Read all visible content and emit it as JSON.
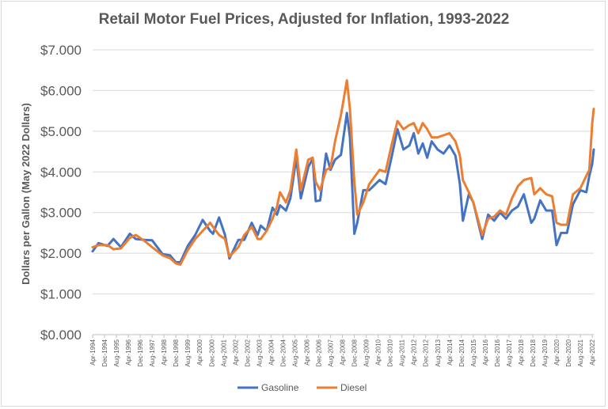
{
  "chart_data": {
    "type": "line",
    "title": "Retail Motor Fuel Prices, Adjusted for Inflation, 1993-2022",
    "xlabel": "",
    "ylabel": "Dollars per Gallon (May 2022 Dollars)",
    "ylim": [
      0,
      7
    ],
    "y_ticks": [
      "$0.000",
      "$1.000",
      "$2.000",
      "$3.000",
      "$4.000",
      "$5.000",
      "$6.000",
      "$7.000"
    ],
    "x_tick_labels": [
      "Apr-1994",
      "Dec-1994",
      "Aug-1995",
      "Apr-1996",
      "Dec-1996",
      "Aug-1997",
      "Apr-1998",
      "Dec-1998",
      "Aug-1999",
      "Apr-2000",
      "Dec-2000",
      "Aug-2001",
      "Apr-2002",
      "Dec-2002",
      "Aug-2003",
      "Apr-2004",
      "Dec-2004",
      "Aug-2005",
      "Apr-2006",
      "Dec-2006",
      "Aug-2007",
      "Apr-2008",
      "Dec-2008",
      "Aug-2009",
      "Apr-2010",
      "Dec-2010",
      "Aug-2011",
      "Apr-2012",
      "Dec-2012",
      "Aug-2013",
      "Apr-2014",
      "Dec-2014",
      "Aug-2015",
      "Apr-2016",
      "Dec-2016",
      "Aug-2017",
      "Apr-2018",
      "Dec-2018",
      "Aug-2019",
      "Apr-2020",
      "Dec-2020",
      "Aug-2021",
      "Apr-2022"
    ],
    "grid": true,
    "legend_position": "bottom",
    "x_range": [
      "1994-04",
      "2022-05"
    ],
    "series": [
      {
        "name": "Gasoline",
        "color": "#4472c4",
        "points": [
          [
            "1994-04",
            2.05
          ],
          [
            "1994-08",
            2.25
          ],
          [
            "1995-02",
            2.18
          ],
          [
            "1995-06",
            2.35
          ],
          [
            "1995-11",
            2.15
          ],
          [
            "1996-05",
            2.48
          ],
          [
            "1996-09",
            2.35
          ],
          [
            "1997-03",
            2.33
          ],
          [
            "1997-08",
            2.32
          ],
          [
            "1998-03",
            1.98
          ],
          [
            "1998-08",
            1.95
          ],
          [
            "1998-12",
            1.78
          ],
          [
            "1999-03",
            1.78
          ],
          [
            "1999-08",
            2.18
          ],
          [
            "2000-01",
            2.45
          ],
          [
            "2000-06",
            2.82
          ],
          [
            "2000-11",
            2.55
          ],
          [
            "2001-01",
            2.48
          ],
          [
            "2001-05",
            2.88
          ],
          [
            "2001-09",
            2.45
          ],
          [
            "2001-12",
            1.87
          ],
          [
            "2002-06",
            2.33
          ],
          [
            "2002-10",
            2.33
          ],
          [
            "2003-03",
            2.75
          ],
          [
            "2003-07",
            2.45
          ],
          [
            "2003-09",
            2.68
          ],
          [
            "2004-01",
            2.55
          ],
          [
            "2004-05",
            3.12
          ],
          [
            "2004-08",
            2.95
          ],
          [
            "2004-10",
            3.18
          ],
          [
            "2005-02",
            3.05
          ],
          [
            "2005-05",
            3.35
          ],
          [
            "2005-09",
            4.35
          ],
          [
            "2005-12",
            3.35
          ],
          [
            "2006-05",
            4.12
          ],
          [
            "2006-08",
            4.32
          ],
          [
            "2006-10",
            3.28
          ],
          [
            "2007-01",
            3.3
          ],
          [
            "2007-05",
            4.45
          ],
          [
            "2007-08",
            4.05
          ],
          [
            "2007-11",
            4.3
          ],
          [
            "2008-03",
            4.42
          ],
          [
            "2008-07",
            5.45
          ],
          [
            "2008-09",
            4.85
          ],
          [
            "2008-12",
            2.48
          ],
          [
            "2009-02",
            2.75
          ],
          [
            "2009-06",
            3.55
          ],
          [
            "2009-10",
            3.55
          ],
          [
            "2010-05",
            3.8
          ],
          [
            "2010-09",
            3.7
          ],
          [
            "2011-01",
            4.35
          ],
          [
            "2011-05",
            5.05
          ],
          [
            "2011-09",
            4.55
          ],
          [
            "2012-01",
            4.65
          ],
          [
            "2012-04",
            4.95
          ],
          [
            "2012-07",
            4.45
          ],
          [
            "2012-10",
            4.7
          ],
          [
            "2013-01",
            4.35
          ],
          [
            "2013-04",
            4.75
          ],
          [
            "2013-08",
            4.55
          ],
          [
            "2013-12",
            4.45
          ],
          [
            "2014-04",
            4.65
          ],
          [
            "2014-08",
            4.4
          ],
          [
            "2014-11",
            3.7
          ],
          [
            "2015-01",
            2.8
          ],
          [
            "2015-05",
            3.45
          ],
          [
            "2015-08",
            3.25
          ],
          [
            "2016-02",
            2.35
          ],
          [
            "2016-06",
            2.95
          ],
          [
            "2016-10",
            2.8
          ],
          [
            "2017-02",
            3.0
          ],
          [
            "2017-06",
            2.85
          ],
          [
            "2017-10",
            3.05
          ],
          [
            "2018-02",
            3.15
          ],
          [
            "2018-06",
            3.45
          ],
          [
            "2018-11",
            2.75
          ],
          [
            "2019-01",
            2.85
          ],
          [
            "2019-05",
            3.3
          ],
          [
            "2019-09",
            3.05
          ],
          [
            "2020-01",
            3.05
          ],
          [
            "2020-04",
            2.2
          ],
          [
            "2020-07",
            2.5
          ],
          [
            "2020-11",
            2.5
          ],
          [
            "2021-03",
            3.2
          ],
          [
            "2021-08",
            3.55
          ],
          [
            "2021-12",
            3.5
          ],
          [
            "2022-02",
            3.9
          ],
          [
            "2022-04",
            4.2
          ],
          [
            "2022-05",
            4.55
          ]
        ]
      },
      {
        "name": "Diesel",
        "color": "#ed7d31",
        "points": [
          [
            "1994-04",
            2.15
          ],
          [
            "1994-08",
            2.2
          ],
          [
            "1995-02",
            2.2
          ],
          [
            "1995-06",
            2.1
          ],
          [
            "1995-11",
            2.12
          ],
          [
            "1996-05",
            2.38
          ],
          [
            "1996-09",
            2.45
          ],
          [
            "1997-03",
            2.3
          ],
          [
            "1997-08",
            2.15
          ],
          [
            "1998-03",
            1.95
          ],
          [
            "1998-08",
            1.88
          ],
          [
            "1998-12",
            1.75
          ],
          [
            "1999-03",
            1.72
          ],
          [
            "1999-08",
            2.08
          ],
          [
            "2000-01",
            2.35
          ],
          [
            "2000-06",
            2.55
          ],
          [
            "2000-11",
            2.75
          ],
          [
            "2001-01",
            2.65
          ],
          [
            "2001-05",
            2.45
          ],
          [
            "2001-09",
            2.35
          ],
          [
            "2001-12",
            1.92
          ],
          [
            "2002-06",
            2.15
          ],
          [
            "2002-10",
            2.45
          ],
          [
            "2003-03",
            2.65
          ],
          [
            "2003-07",
            2.35
          ],
          [
            "2003-09",
            2.35
          ],
          [
            "2004-01",
            2.55
          ],
          [
            "2004-05",
            2.85
          ],
          [
            "2004-08",
            3.15
          ],
          [
            "2004-10",
            3.5
          ],
          [
            "2005-02",
            3.25
          ],
          [
            "2005-05",
            3.55
          ],
          [
            "2005-09",
            4.55
          ],
          [
            "2005-12",
            3.55
          ],
          [
            "2006-05",
            4.3
          ],
          [
            "2006-08",
            4.35
          ],
          [
            "2006-10",
            3.75
          ],
          [
            "2007-01",
            3.55
          ],
          [
            "2007-05",
            4.05
          ],
          [
            "2007-08",
            4.1
          ],
          [
            "2007-11",
            4.75
          ],
          [
            "2008-03",
            5.4
          ],
          [
            "2008-07",
            6.25
          ],
          [
            "2008-09",
            5.55
          ],
          [
            "2008-12",
            3.75
          ],
          [
            "2009-02",
            2.95
          ],
          [
            "2009-06",
            3.25
          ],
          [
            "2009-10",
            3.7
          ],
          [
            "2010-05",
            4.05
          ],
          [
            "2010-09",
            4.0
          ],
          [
            "2011-01",
            4.65
          ],
          [
            "2011-05",
            5.25
          ],
          [
            "2011-09",
            5.05
          ],
          [
            "2012-01",
            5.15
          ],
          [
            "2012-04",
            5.2
          ],
          [
            "2012-07",
            4.95
          ],
          [
            "2012-10",
            5.2
          ],
          [
            "2013-01",
            5.05
          ],
          [
            "2013-04",
            4.85
          ],
          [
            "2013-08",
            4.85
          ],
          [
            "2013-12",
            4.9
          ],
          [
            "2014-04",
            4.95
          ],
          [
            "2014-08",
            4.75
          ],
          [
            "2014-11",
            4.4
          ],
          [
            "2015-01",
            3.8
          ],
          [
            "2015-05",
            3.5
          ],
          [
            "2015-08",
            3.25
          ],
          [
            "2016-02",
            2.45
          ],
          [
            "2016-06",
            2.85
          ],
          [
            "2016-10",
            2.9
          ],
          [
            "2017-02",
            3.05
          ],
          [
            "2017-06",
            2.95
          ],
          [
            "2017-10",
            3.35
          ],
          [
            "2018-02",
            3.65
          ],
          [
            "2018-06",
            3.8
          ],
          [
            "2018-11",
            3.85
          ],
          [
            "2019-01",
            3.45
          ],
          [
            "2019-05",
            3.6
          ],
          [
            "2019-09",
            3.45
          ],
          [
            "2020-01",
            3.4
          ],
          [
            "2020-04",
            2.75
          ],
          [
            "2020-07",
            2.7
          ],
          [
            "2020-11",
            2.7
          ],
          [
            "2021-03",
            3.45
          ],
          [
            "2021-08",
            3.6
          ],
          [
            "2021-12",
            3.9
          ],
          [
            "2022-02",
            4.05
          ],
          [
            "2022-04",
            5.2
          ],
          [
            "2022-05",
            5.55
          ]
        ]
      }
    ]
  }
}
